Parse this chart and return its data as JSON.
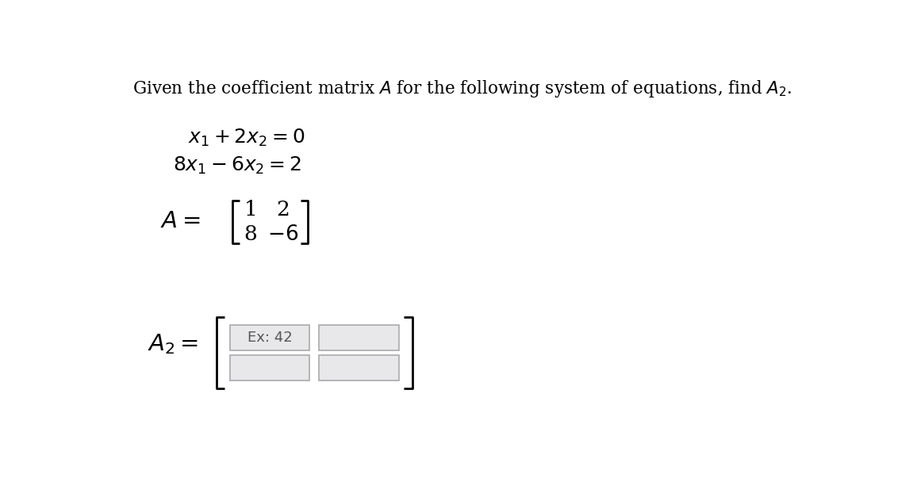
{
  "bg_color": "#ffffff",
  "title_text": "Given the coefficient matrix $\\mathit{A}$ for the following system of equations, find $\\mathit{A}_2$.",
  "eq1": "$x_1 + 2x_2 = 0$",
  "eq2": "$8x_1 - 6x_2 = 2$",
  "matrix_A_label": "$A =$",
  "matrix_A_r0c0": "1",
  "matrix_A_r0c1": "2",
  "matrix_A_r1c0": "8",
  "matrix_A_r1c1": "$-6$",
  "matrix_A2_label": "$A_2 =$",
  "placeholder_text": "Ex: 42",
  "font_size_title": 15.5,
  "font_size_eq": 18,
  "font_size_matrix": 19,
  "font_size_label": 21,
  "font_size_placeholder": 13
}
